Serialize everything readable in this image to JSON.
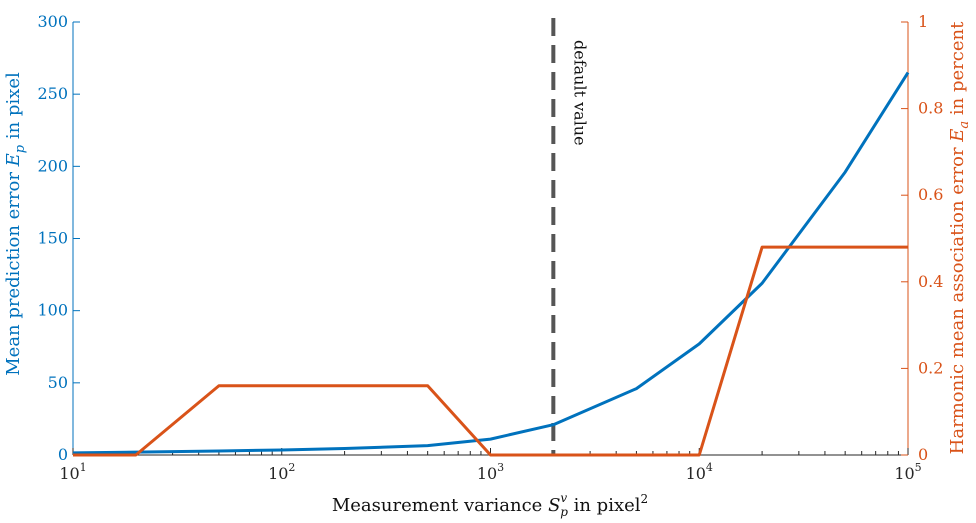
{
  "chart_data": {
    "type": "line",
    "x_scale": "log",
    "xlim": [
      10,
      100000
    ],
    "xlabel": {
      "prefix": "Measurement variance ",
      "sym": "S",
      "sup": "v",
      "sub": "p",
      "mid": " in pixel",
      "exp": "2"
    },
    "x_ticks": [
      {
        "value": 10,
        "base": "10",
        "exp": "1"
      },
      {
        "value": 100,
        "base": "10",
        "exp": "2"
      },
      {
        "value": 1000,
        "base": "10",
        "exp": "3"
      },
      {
        "value": 10000,
        "base": "10",
        "exp": "4"
      },
      {
        "value": 100000,
        "base": "10",
        "exp": "5"
      }
    ],
    "y_left": {
      "ylim": [
        0,
        300
      ],
      "ticks": [
        "0",
        "50",
        "100",
        "150",
        "200",
        "250",
        "300"
      ],
      "label": {
        "prefix": "Mean prediction error ",
        "sym": "E",
        "sub": "p",
        "suffix": " in pixel"
      },
      "color": "#0072BD"
    },
    "y_right": {
      "ylim": [
        0,
        1
      ],
      "ticks": [
        "0",
        "0.2",
        "0.4",
        "0.6",
        "0.8",
        "1"
      ],
      "label": {
        "prefix": "Harmonic mean association error ",
        "sym": "E",
        "sub": "a",
        "suffix": " in percent"
      },
      "color": "#D95319"
    },
    "series": [
      {
        "axis": "left",
        "color": "#0072BD",
        "x": [
          10,
          20,
          50,
          100,
          200,
          500,
          1000,
          2000,
          5000,
          10000,
          20000,
          50000,
          100000
        ],
        "values": [
          1.5,
          2,
          2.8,
          3.5,
          4.5,
          6.5,
          11,
          21,
          46,
          77,
          119,
          196,
          265
        ]
      },
      {
        "axis": "right",
        "color": "#D95319",
        "x": [
          10,
          20,
          50,
          500,
          1000,
          2000,
          10000,
          20000,
          100000
        ],
        "values": [
          0,
          0,
          0.16,
          0.16,
          0,
          0,
          0,
          0.48,
          0.48
        ]
      }
    ],
    "annotation": {
      "x": 2000,
      "text": "default value",
      "color": "#555555"
    },
    "grid": false
  }
}
